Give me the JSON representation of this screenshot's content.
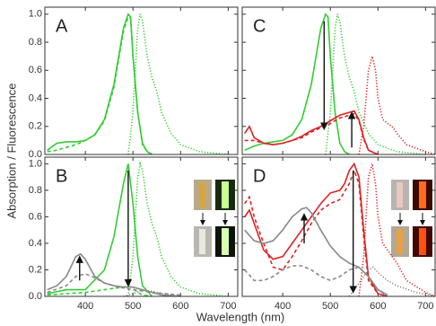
{
  "figure": {
    "ylabel": "Absorption / Fluorescence",
    "xlabel": "Wavelength (nm)"
  },
  "chart_data": [
    {
      "type": "line",
      "panel": "A",
      "xlim": [
        315,
        720
      ],
      "ylim": [
        0,
        1.05
      ],
      "xticks": [
        400,
        500,
        600,
        700
      ],
      "yticks": [
        {
          "value": 0,
          "label": "0.0"
        },
        0.2,
        0.4,
        0.6,
        0.8,
        {
          "value": 1,
          "label": "1.0"
        }
      ],
      "tick_labels": {
        "x": false,
        "y": true
      },
      "series": [
        {
          "color": "#33cc33",
          "style": "solid",
          "x": [
            320,
            340,
            360,
            380,
            400,
            420,
            440,
            460,
            470,
            480,
            490,
            495,
            500,
            510,
            520,
            530,
            540
          ],
          "values": [
            0.03,
            0.08,
            0.09,
            0.09,
            0.1,
            0.14,
            0.25,
            0.5,
            0.7,
            0.9,
            1.0,
            0.98,
            0.7,
            0.3,
            0.08,
            0.02,
            0
          ]
        },
        {
          "color": "#33cc33",
          "style": "dashed",
          "x": [
            320,
            340,
            360,
            380,
            400,
            420,
            440,
            460,
            470,
            480,
            490,
            495,
            500,
            510,
            520,
            530,
            540
          ],
          "values": [
            0.02,
            0.03,
            0.05,
            0.07,
            0.1,
            0.14,
            0.24,
            0.48,
            0.68,
            0.88,
            0.98,
            0.97,
            0.7,
            0.3,
            0.07,
            0.02,
            0
          ]
        },
        {
          "color": "#33cc33",
          "style": "dotted",
          "x": [
            490,
            500,
            510,
            515,
            520,
            530,
            540,
            550,
            560,
            580,
            600,
            640,
            700
          ],
          "values": [
            0,
            0.3,
            0.9,
            1.0,
            0.95,
            0.7,
            0.55,
            0.45,
            0.3,
            0.15,
            0.07,
            0.02,
            0
          ]
        }
      ]
    },
    {
      "type": "line",
      "panel": "B",
      "xlim": [
        315,
        720
      ],
      "ylim": [
        0,
        1.05
      ],
      "xticks": [
        400,
        500,
        600,
        700
      ],
      "yticks": [
        {
          "value": 0,
          "label": "0.0"
        },
        0.2,
        0.4,
        0.6,
        0.8,
        {
          "value": 1,
          "label": "1.0"
        }
      ],
      "tick_labels": {
        "x": true,
        "y": true
      },
      "series": [
        {
          "color": "#33cc33",
          "style": "solid",
          "x": [
            320,
            360,
            400,
            440,
            460,
            480,
            490,
            500,
            510,
            520,
            540
          ],
          "values": [
            0.02,
            0.05,
            0.05,
            0.2,
            0.45,
            0.85,
            1.0,
            0.7,
            0.3,
            0.08,
            0
          ]
        },
        {
          "color": "#33cc33",
          "style": "dashed",
          "x": [
            320,
            360,
            400,
            440,
            460,
            480,
            490,
            500,
            510,
            520,
            540
          ],
          "values": [
            0.01,
            0.02,
            0.03,
            0.05,
            0.06,
            0.07,
            0.08,
            0.06,
            0.03,
            0.01,
            0
          ]
        },
        {
          "color": "#33cc33",
          "style": "dotted",
          "x": [
            490,
            500,
            510,
            515,
            520,
            530,
            540,
            550,
            560,
            580,
            600,
            640,
            700
          ],
          "values": [
            0,
            0.3,
            0.9,
            1.0,
            0.95,
            0.7,
            0.55,
            0.45,
            0.3,
            0.15,
            0.07,
            0.02,
            0
          ]
        },
        {
          "color": "#888888",
          "style": "solid",
          "x": [
            320,
            340,
            360,
            380,
            390,
            400,
            420,
            440,
            460,
            480,
            500,
            520,
            540,
            560,
            600
          ],
          "values": [
            0.05,
            0.08,
            0.15,
            0.3,
            0.32,
            0.28,
            0.15,
            0.1,
            0.08,
            0.07,
            0.07,
            0.05,
            0.03,
            0.01,
            0
          ]
        },
        {
          "color": "#888888",
          "style": "dashed",
          "x": [
            320,
            360,
            380,
            400,
            420,
            440,
            470,
            500,
            540,
            600
          ],
          "values": [
            0.03,
            0.08,
            0.15,
            0.17,
            0.14,
            0.1,
            0.07,
            0.05,
            0.03,
            0.01
          ]
        },
        {
          "color": "#888888",
          "style": "dotted",
          "x": [
            480,
            500,
            520,
            540,
            560,
            600
          ],
          "values": [
            0,
            0.02,
            0.05,
            0.04,
            0.02,
            0
          ]
        }
      ]
    },
    {
      "type": "line",
      "panel": "C",
      "xlim": [
        315,
        720
      ],
      "ylim": [
        0,
        1.05
      ],
      "xticks": [
        400,
        500,
        600,
        700
      ],
      "yticks": [
        {
          "value": 0,
          "label": "0.0"
        },
        0.2,
        0.4,
        0.6,
        0.8,
        {
          "value": 1,
          "label": "1.0"
        }
      ],
      "tick_labels": {
        "x": false,
        "y": false
      },
      "series": [
        {
          "color": "#33cc33",
          "style": "solid",
          "x": [
            320,
            340,
            360,
            380,
            400,
            420,
            440,
            460,
            470,
            480,
            490,
            495,
            500,
            510,
            520,
            530,
            540
          ],
          "values": [
            0.03,
            0.06,
            0.08,
            0.09,
            0.1,
            0.14,
            0.25,
            0.5,
            0.7,
            0.9,
            1.0,
            0.98,
            0.7,
            0.3,
            0.08,
            0.02,
            0
          ]
        },
        {
          "color": "#33cc33",
          "style": "dotted",
          "x": [
            490,
            500,
            510,
            515,
            520,
            530,
            540,
            550,
            560,
            580,
            600,
            640,
            700
          ],
          "values": [
            0,
            0.3,
            0.9,
            1.0,
            0.95,
            0.7,
            0.55,
            0.45,
            0.3,
            0.15,
            0.07,
            0.02,
            0
          ]
        },
        {
          "color": "#dd2222",
          "style": "solid",
          "x": [
            320,
            330,
            340,
            360,
            380,
            400,
            420,
            440,
            460,
            480,
            500,
            520,
            540,
            550,
            560,
            570,
            580,
            600
          ],
          "values": [
            0.15,
            0.2,
            0.12,
            0.08,
            0.07,
            0.08,
            0.1,
            0.13,
            0.17,
            0.2,
            0.24,
            0.28,
            0.3,
            0.31,
            0.25,
            0.12,
            0.03,
            0
          ]
        },
        {
          "color": "#dd2222",
          "style": "dashed",
          "x": [
            320,
            340,
            360,
            380,
            400,
            420,
            440,
            460,
            480,
            500,
            520,
            540,
            550,
            560,
            570,
            580,
            600
          ],
          "values": [
            0.1,
            0.1,
            0.08,
            0.07,
            0.08,
            0.1,
            0.12,
            0.16,
            0.19,
            0.22,
            0.26,
            0.28,
            0.29,
            0.24,
            0.11,
            0.03,
            0
          ]
        },
        {
          "color": "#dd2222",
          "style": "dotted",
          "x": [
            560,
            570,
            580,
            588,
            595,
            600,
            610,
            620,
            630,
            640,
            660,
            700,
            720
          ],
          "values": [
            0,
            0.2,
            0.6,
            0.7,
            0.6,
            0.4,
            0.25,
            0.22,
            0.2,
            0.15,
            0.07,
            0.02,
            0
          ]
        }
      ]
    },
    {
      "type": "line",
      "panel": "D",
      "xlim": [
        315,
        720
      ],
      "ylim": [
        0,
        1.05
      ],
      "xticks": [
        400,
        500,
        600,
        700
      ],
      "yticks": [
        {
          "value": 0,
          "label": "0.0"
        },
        0.2,
        0.4,
        0.6,
        0.8,
        {
          "value": 1,
          "label": "1.0"
        }
      ],
      "tick_labels": {
        "x": true,
        "y": false
      },
      "series": [
        {
          "color": "#dd2222",
          "style": "solid",
          "x": [
            320,
            330,
            340,
            360,
            380,
            400,
            420,
            440,
            460,
            480,
            500,
            520,
            530,
            540,
            550,
            560,
            570,
            580,
            600,
            620
          ],
          "values": [
            0.6,
            0.65,
            0.55,
            0.35,
            0.28,
            0.3,
            0.4,
            0.5,
            0.6,
            0.7,
            0.78,
            0.8,
            0.85,
            0.95,
            1.0,
            0.9,
            0.5,
            0.15,
            0.02,
            0
          ]
        },
        {
          "color": "#dd2222",
          "style": "dashed",
          "x": [
            320,
            330,
            340,
            360,
            380,
            400,
            420,
            440,
            460,
            480,
            500,
            520,
            540,
            550,
            560,
            570,
            580,
            600
          ],
          "values": [
            0.7,
            0.75,
            0.6,
            0.4,
            0.22,
            0.2,
            0.3,
            0.42,
            0.55,
            0.65,
            0.7,
            0.73,
            0.85,
            0.95,
            0.85,
            0.45,
            0.12,
            0.02
          ]
        },
        {
          "color": "#dd2222",
          "style": "dotted",
          "x": [
            560,
            570,
            580,
            588,
            595,
            600,
            610,
            620,
            640,
            660,
            700,
            720
          ],
          "values": [
            0,
            0.3,
            0.9,
            1.0,
            0.85,
            0.6,
            0.4,
            0.35,
            0.25,
            0.12,
            0.03,
            0
          ]
        },
        {
          "color": "#888888",
          "style": "solid",
          "x": [
            320,
            340,
            360,
            380,
            400,
            420,
            440,
            450,
            460,
            480,
            500,
            520,
            540,
            560,
            580,
            600,
            620
          ],
          "values": [
            0.5,
            0.42,
            0.4,
            0.42,
            0.5,
            0.6,
            0.66,
            0.67,
            0.63,
            0.5,
            0.38,
            0.3,
            0.25,
            0.22,
            0.15,
            0.05,
            0.01
          ]
        },
        {
          "color": "#888888",
          "style": "dashed",
          "x": [
            320,
            340,
            360,
            380,
            400,
            420,
            440,
            460,
            480,
            500,
            520,
            540,
            560,
            580,
            600,
            620
          ],
          "values": [
            0.2,
            0.12,
            0.12,
            0.15,
            0.2,
            0.23,
            0.23,
            0.2,
            0.15,
            0.12,
            0.15,
            0.2,
            0.22,
            0.15,
            0.05,
            0
          ]
        },
        {
          "color": "#888888",
          "style": "dotted",
          "x": [
            540,
            560,
            580,
            590,
            600,
            620,
            640,
            680,
            720
          ],
          "values": [
            0,
            0.1,
            0.2,
            0.22,
            0.18,
            0.12,
            0.08,
            0.03,
            0
          ]
        }
      ]
    }
  ]
}
